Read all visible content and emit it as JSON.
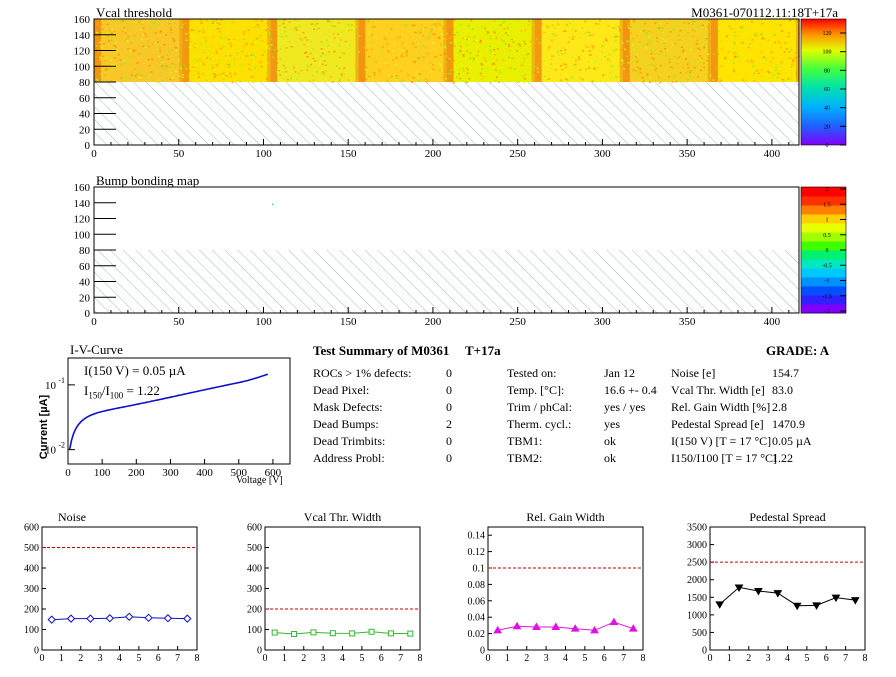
{
  "header": {
    "run_id": "M0361-070112.11:18T+17a"
  },
  "vcal_map": {
    "title": "Vcal threshold",
    "xticks": [
      0,
      50,
      100,
      150,
      200,
      250,
      300,
      350,
      400
    ],
    "yticks": [
      0,
      20,
      40,
      60,
      80,
      100,
      120,
      140,
      160
    ],
    "palette_ticks": [
      "0",
      "20",
      "40",
      "60",
      "80",
      "100",
      "120"
    ],
    "xlim": [
      0,
      416
    ],
    "ylim": [
      0,
      160
    ]
  },
  "bump_map": {
    "title": "Bump bonding map",
    "xticks": [
      0,
      50,
      100,
      150,
      200,
      250,
      300,
      350,
      400
    ],
    "yticks": [
      0,
      20,
      40,
      60,
      80,
      100,
      120,
      140,
      160
    ],
    "palette_ticks": [
      "2",
      "1.5",
      "1",
      "0.5",
      "0",
      "-0.5",
      "-1",
      "-1.5",
      "-2"
    ],
    "xlim": [
      0,
      416
    ],
    "ylim": [
      0,
      160
    ]
  },
  "iv_curve": {
    "title": "I-V-Curve",
    "ylabel": "Current [µA]",
    "xlabel": "Voltage [V]",
    "annot1": "I(150 V) = 0.05 µA",
    "annot2_a": "I",
    "annot2_sub1": "150",
    "annot2_b": "/I",
    "annot2_sub2": "100",
    "annot2_c": " =  1.22",
    "xticks": [
      0,
      100,
      200,
      300,
      400,
      500,
      600
    ],
    "ytick_labels": [
      "10",
      "10"
    ],
    "ytick_sups": [
      "-2",
      "-1"
    ]
  },
  "summary": {
    "title": "Test Summary of M0361",
    "tag": "T+17a",
    "grade": "GRADE:  A",
    "col1": [
      {
        "label": "ROCs > 1% defects:",
        "value": "0"
      },
      {
        "label": "Dead Pixel:",
        "value": "0"
      },
      {
        "label": "Mask Defects:",
        "value": "0"
      },
      {
        "label": "Dead Bumps:",
        "value": "2"
      },
      {
        "label": "Dead Trimbits:",
        "value": "0"
      },
      {
        "label": "Address Probl:",
        "value": "0"
      }
    ],
    "col2": [
      {
        "label": "Tested on:",
        "value": "Jan 12"
      },
      {
        "label": "Temp. [°C]:",
        "value": "16.6 +- 0.4"
      },
      {
        "label": "Trim / phCal:",
        "value": "yes / yes"
      },
      {
        "label": "Therm. cycl.:",
        "value": "yes"
      },
      {
        "label": "TBM1:",
        "value": "ok"
      },
      {
        "label": "TBM2:",
        "value": "ok"
      }
    ],
    "col3": [
      {
        "label": "Noise [e]",
        "value": "154.7"
      },
      {
        "label": "Vcal Thr. Width [e]",
        "value": "83.0"
      },
      {
        "label": "Rel. Gain Width [%]",
        "value": "2.8"
      },
      {
        "label": "Pedestal Spread [e]",
        "value": "1470.9"
      },
      {
        "label": "I(150 V) [T = 17 °C]",
        "value": "0.05 µA"
      },
      {
        "label": "I150/I100  [T = 17 °C]",
        "value": "1.22"
      }
    ]
  },
  "chart_data": [
    {
      "type": "line",
      "title": "Noise",
      "x": [
        0.5,
        1.5,
        2.5,
        3.5,
        4.5,
        5.5,
        6.5,
        7.5
      ],
      "values": [
        148,
        153,
        153,
        155,
        162,
        157,
        155,
        153
      ],
      "ylim": [
        0,
        600
      ],
      "xlim": [
        0,
        8
      ],
      "yticks": [
        0,
        100,
        200,
        300,
        400,
        500,
        600
      ],
      "xticks": [
        0,
        1,
        2,
        3,
        4,
        5,
        6,
        7,
        8
      ],
      "limit": 500,
      "color": "#1010c8",
      "marker": "diamond"
    },
    {
      "type": "line",
      "title": "Vcal Thr. Width",
      "x": [
        0.5,
        1.5,
        2.5,
        3.5,
        4.5,
        5.5,
        6.5,
        7.5
      ],
      "values": [
        85,
        78,
        86,
        82,
        81,
        89,
        81,
        80
      ],
      "ylim": [
        0,
        600
      ],
      "xlim": [
        0,
        8
      ],
      "yticks": [
        0,
        100,
        200,
        300,
        400,
        500,
        600
      ],
      "xticks": [
        0,
        1,
        2,
        3,
        4,
        5,
        6,
        7,
        8
      ],
      "limit": 200,
      "color": "#30b830",
      "marker": "square"
    },
    {
      "type": "line",
      "title": "Rel. Gain Width",
      "x": [
        0.5,
        1.5,
        2.5,
        3.5,
        4.5,
        5.5,
        6.5,
        7.5
      ],
      "values": [
        0.024,
        0.029,
        0.028,
        0.028,
        0.026,
        0.024,
        0.034,
        0.026
      ],
      "ylim": [
        0,
        0.15
      ],
      "xlim": [
        0,
        8
      ],
      "yticks": [
        0,
        0.02,
        0.04,
        0.06,
        0.08,
        0.1,
        0.12,
        0.14
      ],
      "xticks": [
        0,
        1,
        2,
        3,
        4,
        5,
        6,
        7,
        8
      ],
      "limit": 0.1,
      "color": "#e010e0",
      "marker": "triangle-up"
    },
    {
      "type": "line",
      "title": "Pedestal Spread",
      "x": [
        0.5,
        1.5,
        2.5,
        3.5,
        4.5,
        5.5,
        6.5,
        7.5
      ],
      "values": [
        1300,
        1780,
        1680,
        1620,
        1260,
        1270,
        1490,
        1420
      ],
      "ylim": [
        0,
        3500
      ],
      "xlim": [
        0,
        8
      ],
      "yticks": [
        0,
        500,
        1000,
        1500,
        2000,
        2500,
        3000,
        3500
      ],
      "xticks": [
        0,
        1,
        2,
        3,
        4,
        5,
        6,
        7,
        8
      ],
      "limit": 2500,
      "color": "#000000",
      "marker": "triangle-down"
    }
  ]
}
